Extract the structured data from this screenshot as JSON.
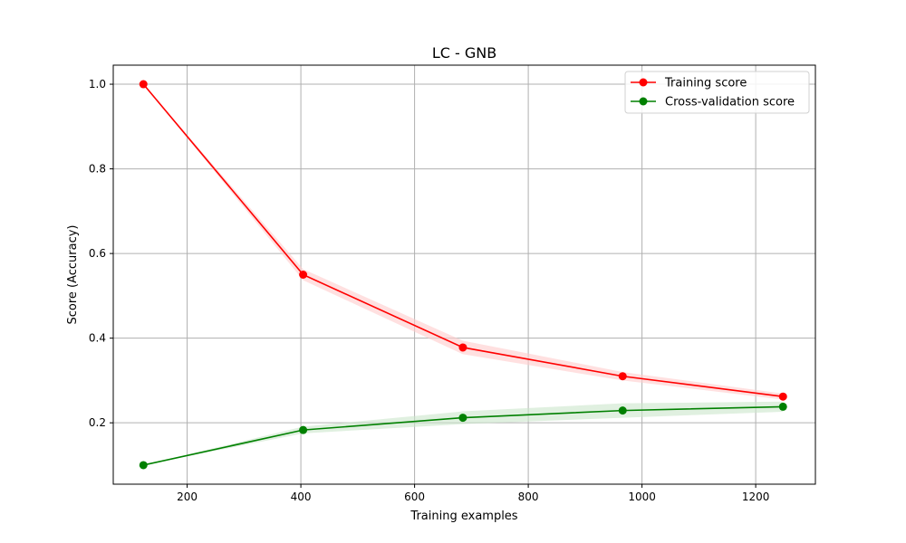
{
  "chart_data": {
    "type": "line",
    "title": "LC - GNB",
    "xlabel": "Training examples",
    "ylabel": "Score (Accuracy)",
    "xlim": [
      70,
      1305
    ],
    "ylim": [
      0.055,
      1.045
    ],
    "xticks": [
      200,
      400,
      600,
      800,
      1000,
      1200
    ],
    "yticks": [
      0.2,
      0.4,
      0.6,
      0.8,
      1.0
    ],
    "grid": true,
    "legend_position": "top-right",
    "x": [
      123,
      404,
      685,
      966,
      1248
    ],
    "series": [
      {
        "name": "Training score",
        "color": "#ff0000",
        "band_color": "#ffcccc",
        "values": [
          1.0,
          0.55,
          0.378,
          0.31,
          0.262
        ],
        "band_lower": [
          1.0,
          0.537,
          0.362,
          0.3,
          0.255
        ],
        "band_upper": [
          1.0,
          0.563,
          0.394,
          0.32,
          0.269
        ]
      },
      {
        "name": "Cross-validation score",
        "color": "#008000",
        "band_color": "#cce6cc",
        "values": [
          0.1,
          0.183,
          0.212,
          0.229,
          0.238
        ],
        "band_lower": [
          0.1,
          0.175,
          0.197,
          0.212,
          0.226
        ],
        "band_upper": [
          0.1,
          0.191,
          0.227,
          0.246,
          0.25
        ]
      }
    ]
  }
}
